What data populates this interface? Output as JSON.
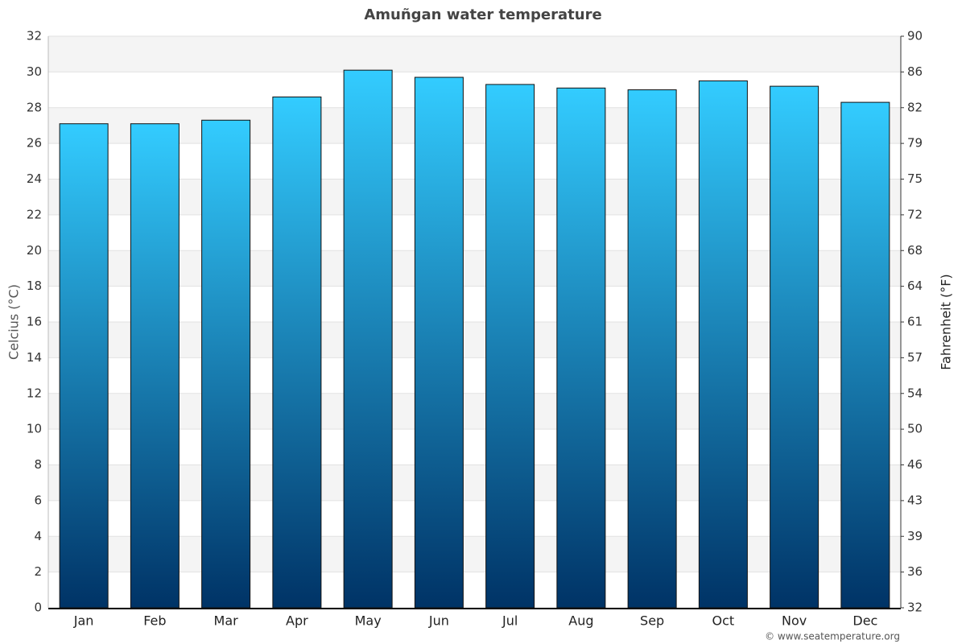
{
  "chart_data": {
    "type": "bar",
    "title": "Amuñgan water temperature",
    "y_label": "Celcius (°C)",
    "y2_label": "Fahrenheit (°F)",
    "credit": "© www.seatemperature.org",
    "categories": [
      "Jan",
      "Feb",
      "Mar",
      "Apr",
      "May",
      "Jun",
      "Jul",
      "Aug",
      "Sep",
      "Oct",
      "Nov",
      "Dec"
    ],
    "values": [
      27.1,
      27.1,
      27.3,
      28.6,
      30.1,
      29.7,
      29.3,
      29.1,
      29.0,
      29.5,
      29.2,
      28.3
    ],
    "color": [
      "#33ccff",
      "#003366"
    ],
    "ylim": [
      0,
      32
    ],
    "yticks": [
      0,
      2,
      4,
      6,
      8,
      10,
      12,
      14,
      16,
      18,
      20,
      22,
      24,
      26,
      28,
      30,
      32
    ],
    "y2lim": [
      32,
      89.6
    ],
    "y2ticks": [
      32,
      {
        "value": 35.6,
        "label": "36"
      },
      {
        "value": 39.2,
        "label": "39"
      },
      {
        "value": 42.8,
        "label": "43"
      },
      {
        "value": 46.4,
        "label": "46"
      },
      50,
      {
        "value": 53.6,
        "label": "54"
      },
      {
        "value": 57.2,
        "label": "57"
      },
      {
        "value": 60.8,
        "label": "61"
      },
      {
        "value": 64.4,
        "label": "64"
      },
      68,
      {
        "value": 71.6,
        "label": "72"
      },
      {
        "value": 75.2,
        "label": "75"
      },
      {
        "value": 78.8,
        "label": "79"
      },
      {
        "value": 82.4,
        "label": "82"
      },
      86,
      {
        "value": 89.6,
        "label": "90"
      }
    ],
    "grid": true
  }
}
